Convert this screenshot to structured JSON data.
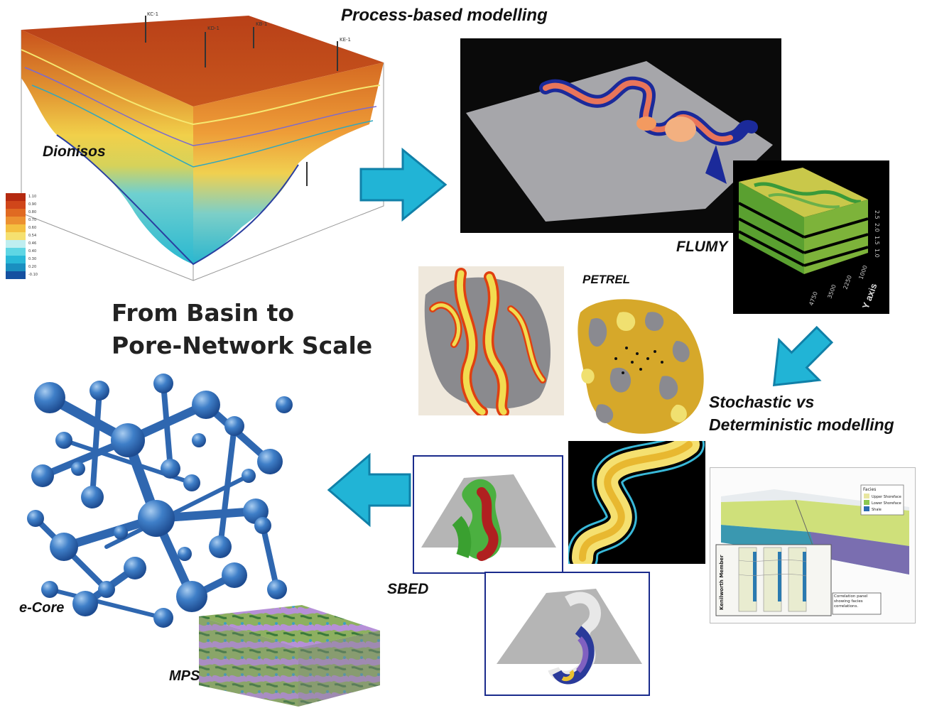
{
  "labels": {
    "process_based": "Process-based modelling",
    "dionisos": "Dionisos",
    "flumy": "FLUMY",
    "petrel": "PETREL",
    "stochastic_line1": "Stochastic vs",
    "stochastic_line2": "Deterministic modelling",
    "sbed": "SBED",
    "ecore": "e-Core",
    "mps": "MPS"
  },
  "title": {
    "line1": "From Basin to",
    "line2": "Pore-Network Scale"
  },
  "dionisos_wells": [
    "KC-1",
    "KD-1",
    "KB-1",
    "KE-1"
  ],
  "dionisos_legend": [
    "1.10",
    "0.90",
    "0.80",
    "0.70",
    "0.60",
    "0.54",
    "0.46",
    "0.40",
    "0.30",
    "0.20",
    "-0.10"
  ],
  "flumy_axis": {
    "title": "Y axis",
    "ticks": [
      "4750",
      "3500",
      "2250",
      "1000"
    ],
    "z_ticks": [
      "2.5",
      "2.0",
      "1.5",
      "1.0"
    ]
  },
  "correlation": {
    "legend_title": "Facies",
    "legend_items": [
      "Upper Shoreface",
      "Lower Shoreface",
      "Shale"
    ],
    "panel_heading": "Kenilworth Member",
    "note": "Correlation panel showing facies correlations."
  },
  "colors": {
    "arrow": "#21b4d6",
    "arrow_stroke": "#1080a8",
    "pore": "#2a66b4",
    "frame": "#1a2b8c"
  }
}
